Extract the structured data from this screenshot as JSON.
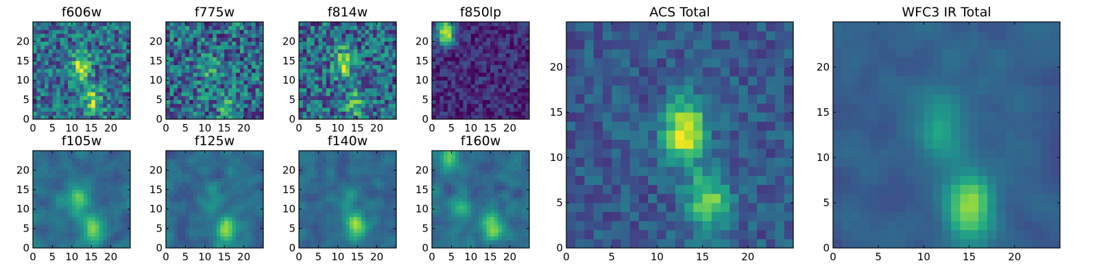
{
  "figure": {
    "description_note": ""
  },
  "chart_data": [
    {
      "type": "heatmap",
      "title": "f606w",
      "xlabel": "",
      "ylabel": "",
      "x_range": [
        0,
        25
      ],
      "y_range": [
        0,
        25
      ],
      "xticks": [
        0,
        5,
        10,
        15,
        20
      ],
      "yticks": [
        0,
        5,
        10,
        15,
        20
      ],
      "colormap": "viridis",
      "features": [
        {
          "x": 12.5,
          "y": 13.5,
          "peak": 0.95
        },
        {
          "x": 15.5,
          "y": 4.5,
          "peak": 0.85
        }
      ],
      "noise": 0.38,
      "seed": 1
    },
    {
      "type": "heatmap",
      "title": "f775w",
      "xlabel": "",
      "ylabel": "",
      "x_range": [
        0,
        25
      ],
      "y_range": [
        0,
        25
      ],
      "xticks": [
        0,
        5,
        10,
        15,
        20
      ],
      "yticks": [
        0,
        5,
        10,
        15,
        20
      ],
      "colormap": "viridis",
      "features": [
        {
          "x": 11.5,
          "y": 12.5,
          "peak": 0.6
        },
        {
          "x": 15.5,
          "y": 3.5,
          "peak": 0.6
        }
      ],
      "noise": 0.42,
      "seed": 2
    },
    {
      "type": "heatmap",
      "title": "f814w",
      "xlabel": "",
      "ylabel": "",
      "x_range": [
        0,
        25
      ],
      "y_range": [
        0,
        25
      ],
      "xticks": [
        0,
        5,
        10,
        15,
        20
      ],
      "yticks": [
        0,
        5,
        10,
        15,
        20
      ],
      "colormap": "viridis",
      "features": [
        {
          "x": 11.5,
          "y": 14.5,
          "peak": 0.95
        },
        {
          "x": 14.5,
          "y": 4.5,
          "peak": 0.75
        }
      ],
      "noise": 0.4,
      "seed": 3
    },
    {
      "type": "heatmap",
      "title": "f850lp",
      "xlabel": "",
      "ylabel": "",
      "x_range": [
        0,
        25
      ],
      "y_range": [
        0,
        25
      ],
      "xticks": [
        0,
        5,
        10,
        15,
        20
      ],
      "yticks": [
        0,
        5,
        10,
        15,
        20
      ],
      "colormap": "viridis",
      "features": [
        {
          "x": 3.5,
          "y": 22.5,
          "peak": 1.0
        }
      ],
      "noise": 0.2,
      "base": 0.12,
      "seed": 4
    },
    {
      "type": "heatmap",
      "title": "f105w",
      "xlabel": "",
      "ylabel": "",
      "x_range": [
        0,
        25
      ],
      "y_range": [
        0,
        25
      ],
      "xticks": [
        0,
        5,
        10,
        15,
        20
      ],
      "yticks": [
        0,
        5,
        10,
        15,
        20
      ],
      "colormap": "viridis",
      "features": [
        {
          "x": 11.5,
          "y": 12.5,
          "peak": 0.9
        },
        {
          "x": 15.5,
          "y": 4.5,
          "peak": 0.9
        }
      ],
      "noise": 0.3,
      "smooth": true,
      "seed": 5
    },
    {
      "type": "heatmap",
      "title": "f125w",
      "xlabel": "",
      "ylabel": "",
      "x_range": [
        0,
        25
      ],
      "y_range": [
        0,
        25
      ],
      "xticks": [
        0,
        5,
        10,
        15,
        20
      ],
      "yticks": [
        0,
        5,
        10,
        15,
        20
      ],
      "colormap": "viridis",
      "features": [
        {
          "x": 12.5,
          "y": 11.5,
          "peak": 0.55
        },
        {
          "x": 15.5,
          "y": 4.5,
          "peak": 0.95
        }
      ],
      "noise": 0.3,
      "smooth": true,
      "seed": 6
    },
    {
      "type": "heatmap",
      "title": "f140w",
      "xlabel": "",
      "ylabel": "",
      "x_range": [
        0,
        25
      ],
      "y_range": [
        0,
        25
      ],
      "xticks": [
        0,
        5,
        10,
        15,
        20
      ],
      "yticks": [
        0,
        5,
        10,
        15,
        20
      ],
      "colormap": "viridis",
      "features": [
        {
          "x": 12.5,
          "y": 12.5,
          "peak": 0.55
        },
        {
          "x": 14.5,
          "y": 5.5,
          "peak": 0.95
        }
      ],
      "noise": 0.28,
      "smooth": true,
      "seed": 7
    },
    {
      "type": "heatmap",
      "title": "f160w",
      "xlabel": "",
      "ylabel": "",
      "x_range": [
        0,
        25
      ],
      "y_range": [
        0,
        25
      ],
      "xticks": [
        0,
        5,
        10,
        15,
        20
      ],
      "yticks": [
        0,
        5,
        10,
        15,
        20
      ],
      "colormap": "viridis",
      "features": [
        {
          "x": 15.5,
          "y": 5.5,
          "peak": 0.95
        },
        {
          "x": 7.5,
          "y": 10.5,
          "peak": 0.6
        },
        {
          "x": 4.5,
          "y": 23.5,
          "peak": 0.8
        }
      ],
      "noise": 0.3,
      "smooth": true,
      "seed": 8
    },
    {
      "type": "heatmap",
      "title": "ACS Total",
      "xlabel": "",
      "ylabel": "",
      "x_range": [
        0,
        25
      ],
      "y_range": [
        0,
        25
      ],
      "xticks": [
        0,
        5,
        10,
        15,
        20
      ],
      "yticks": [
        0,
        5,
        10,
        15,
        20
      ],
      "colormap": "viridis",
      "features": [
        {
          "x": 13.0,
          "y": 13.0,
          "peak": 1.0
        },
        {
          "x": 15.5,
          "y": 5.0,
          "peak": 0.8
        }
      ],
      "noise": 0.18,
      "base": 0.28,
      "seed": 9
    },
    {
      "type": "heatmap",
      "title": "WFC3 IR Total",
      "xlabel": "",
      "ylabel": "",
      "x_range": [
        0,
        25
      ],
      "y_range": [
        0,
        25
      ],
      "xticks": [
        0,
        5,
        10,
        15,
        20
      ],
      "yticks": [
        0,
        5,
        10,
        15,
        20
      ],
      "colormap": "viridis",
      "features": [
        {
          "x": 15.0,
          "y": 4.5,
          "peak": 1.0
        },
        {
          "x": 12.0,
          "y": 13.5,
          "peak": 0.65
        }
      ],
      "noise": 0.16,
      "base": 0.3,
      "smooth": true,
      "seed": 10
    }
  ]
}
